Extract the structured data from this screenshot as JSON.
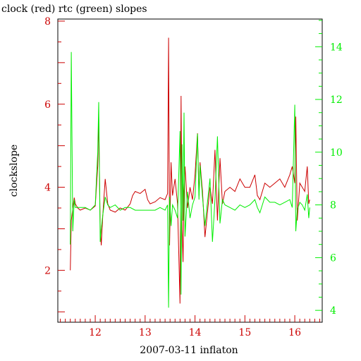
{
  "colors": {
    "left_axis": "#cc0000",
    "right_axis": "#00ee00",
    "clock_series": "#cc0000",
    "rtc_series": "#00ee00",
    "frame": "#000000"
  },
  "chart_data": {
    "type": "line",
    "title": "clock (red) rtc (green) slopes",
    "xlabel": "2007-03-11 inflaton",
    "ylabel": "clockslope",
    "xlim": [
      11.25,
      16.55
    ],
    "ylim_left": [
      0.75,
      8.05
    ],
    "ylim_right": [
      3.55,
      15.05
    ],
    "x_ticks": [
      12,
      13,
      14,
      15,
      16
    ],
    "left_ticks": [
      2,
      4,
      6,
      8
    ],
    "right_ticks": [
      4,
      6,
      8,
      10,
      12,
      14
    ],
    "legend": "none",
    "grid": false,
    "series": [
      {
        "name": "clock",
        "axis": "left",
        "x": [
          11.5,
          11.52,
          11.55,
          11.58,
          11.6,
          11.65,
          11.7,
          11.8,
          11.9,
          12.0,
          12.05,
          12.07,
          12.1,
          12.12,
          12.15,
          12.2,
          12.25,
          12.3,
          12.4,
          12.5,
          12.6,
          12.7,
          12.75,
          12.8,
          12.9,
          13.0,
          13.05,
          13.1,
          13.2,
          13.3,
          13.4,
          13.45,
          13.47,
          13.49,
          13.52,
          13.55,
          13.6,
          13.65,
          13.7,
          13.72,
          13.74,
          13.76,
          13.78,
          13.8,
          13.85,
          13.9,
          13.95,
          14.0,
          14.05,
          14.08,
          14.1,
          14.15,
          14.2,
          14.3,
          14.35,
          14.4,
          14.45,
          14.5,
          14.55,
          14.6,
          14.7,
          14.8,
          14.9,
          15.0,
          15.1,
          15.2,
          15.25,
          15.3,
          15.4,
          15.5,
          15.6,
          15.7,
          15.8,
          15.9,
          15.95,
          16.0,
          16.02,
          16.05,
          16.1,
          16.15,
          16.2,
          16.25,
          16.28,
          16.3
        ],
        "values": [
          2.0,
          3.2,
          3.5,
          3.75,
          3.6,
          3.5,
          3.45,
          3.5,
          3.45,
          3.55,
          4.5,
          5.7,
          3.0,
          2.6,
          3.3,
          4.2,
          3.6,
          3.45,
          3.4,
          3.5,
          3.45,
          3.6,
          3.8,
          3.9,
          3.85,
          3.95,
          3.7,
          3.6,
          3.65,
          3.75,
          3.7,
          3.85,
          7.6,
          2.6,
          4.6,
          3.8,
          4.2,
          3.6,
          1.2,
          6.2,
          3.0,
          2.2,
          3.9,
          4.5,
          3.5,
          4.0,
          3.7,
          4.3,
          5.3,
          3.8,
          4.6,
          3.9,
          2.8,
          4.0,
          3.6,
          4.9,
          3.2,
          4.7,
          3.6,
          3.9,
          4.0,
          3.9,
          4.2,
          4.0,
          4.0,
          4.3,
          3.8,
          3.7,
          4.1,
          4.0,
          4.1,
          4.2,
          4.0,
          4.3,
          4.5,
          4.1,
          5.7,
          3.2,
          4.1,
          4.0,
          3.9,
          4.5,
          3.6,
          3.7
        ]
      },
      {
        "name": "rtc",
        "axis": "right",
        "x": [
          11.5,
          11.52,
          11.55,
          11.58,
          11.6,
          11.65,
          11.7,
          11.8,
          11.9,
          12.0,
          12.05,
          12.07,
          12.1,
          12.12,
          12.15,
          12.2,
          12.25,
          12.3,
          12.4,
          12.5,
          12.6,
          12.7,
          12.8,
          12.9,
          13.0,
          13.1,
          13.2,
          13.3,
          13.4,
          13.45,
          13.47,
          13.49,
          13.52,
          13.55,
          13.6,
          13.65,
          13.7,
          13.72,
          13.74,
          13.76,
          13.78,
          13.8,
          13.85,
          13.9,
          13.95,
          14.0,
          14.05,
          14.08,
          14.1,
          14.15,
          14.2,
          14.3,
          14.35,
          14.4,
          14.45,
          14.5,
          14.55,
          14.6,
          14.7,
          14.8,
          14.9,
          15.0,
          15.1,
          15.2,
          15.25,
          15.3,
          15.4,
          15.5,
          15.6,
          15.7,
          15.8,
          15.9,
          15.95,
          16.0,
          16.02,
          16.05,
          16.1,
          16.15,
          16.2,
          16.25,
          16.28,
          16.3
        ],
        "values": [
          6.5,
          13.8,
          7.0,
          8.2,
          7.9,
          7.9,
          7.9,
          7.9,
          7.8,
          8.0,
          10.0,
          11.9,
          6.6,
          7.1,
          7.6,
          8.3,
          8.0,
          7.9,
          8.0,
          7.8,
          7.9,
          7.9,
          7.8,
          7.8,
          7.8,
          7.8,
          7.8,
          7.9,
          7.8,
          8.0,
          4.1,
          8.3,
          7.2,
          8.0,
          7.8,
          7.5,
          10.8,
          4.6,
          10.3,
          7.4,
          11.5,
          6.8,
          8.5,
          7.5,
          8.0,
          8.3,
          10.7,
          8.2,
          9.5,
          8.3,
          7.2,
          9.0,
          6.6,
          8.2,
          10.6,
          7.3,
          8.2,
          8.0,
          7.9,
          7.8,
          8.0,
          7.9,
          8.0,
          8.2,
          7.9,
          7.7,
          8.3,
          8.1,
          8.1,
          8.0,
          8.1,
          8.2,
          7.9,
          11.8,
          7.0,
          7.8,
          8.1,
          8.0,
          7.8,
          8.4,
          7.5,
          7.9
        ]
      }
    ]
  }
}
